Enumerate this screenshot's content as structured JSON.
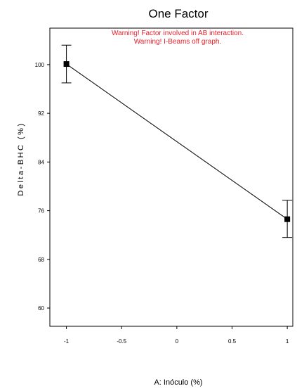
{
  "chart_data": {
    "type": "line",
    "title": "One Factor",
    "xlabel": "A: Inóculo (%)",
    "ylabel": "Delta-BHC (%)",
    "xlim": [
      -1.15,
      1.05
    ],
    "ylim": [
      57,
      106
    ],
    "x_ticks": [
      "-1",
      "-0.5",
      "0",
      "0.5",
      "1"
    ],
    "y_ticks": [
      "60",
      "68",
      "76",
      "84",
      "92",
      "100"
    ],
    "annotations": [
      "Warning! Factor involved in AB interaction.",
      "Warning! I-Beams off graph."
    ],
    "series": [
      {
        "x": [
          -1,
          1
        ],
        "y": [
          100.1,
          74.6
        ],
        "error_low": [
          97.0,
          71.6
        ],
        "error_high": [
          103.2,
          77.7
        ]
      }
    ],
    "grid": false,
    "colors": {
      "line": "#000000",
      "warning": "#e8202a"
    }
  }
}
